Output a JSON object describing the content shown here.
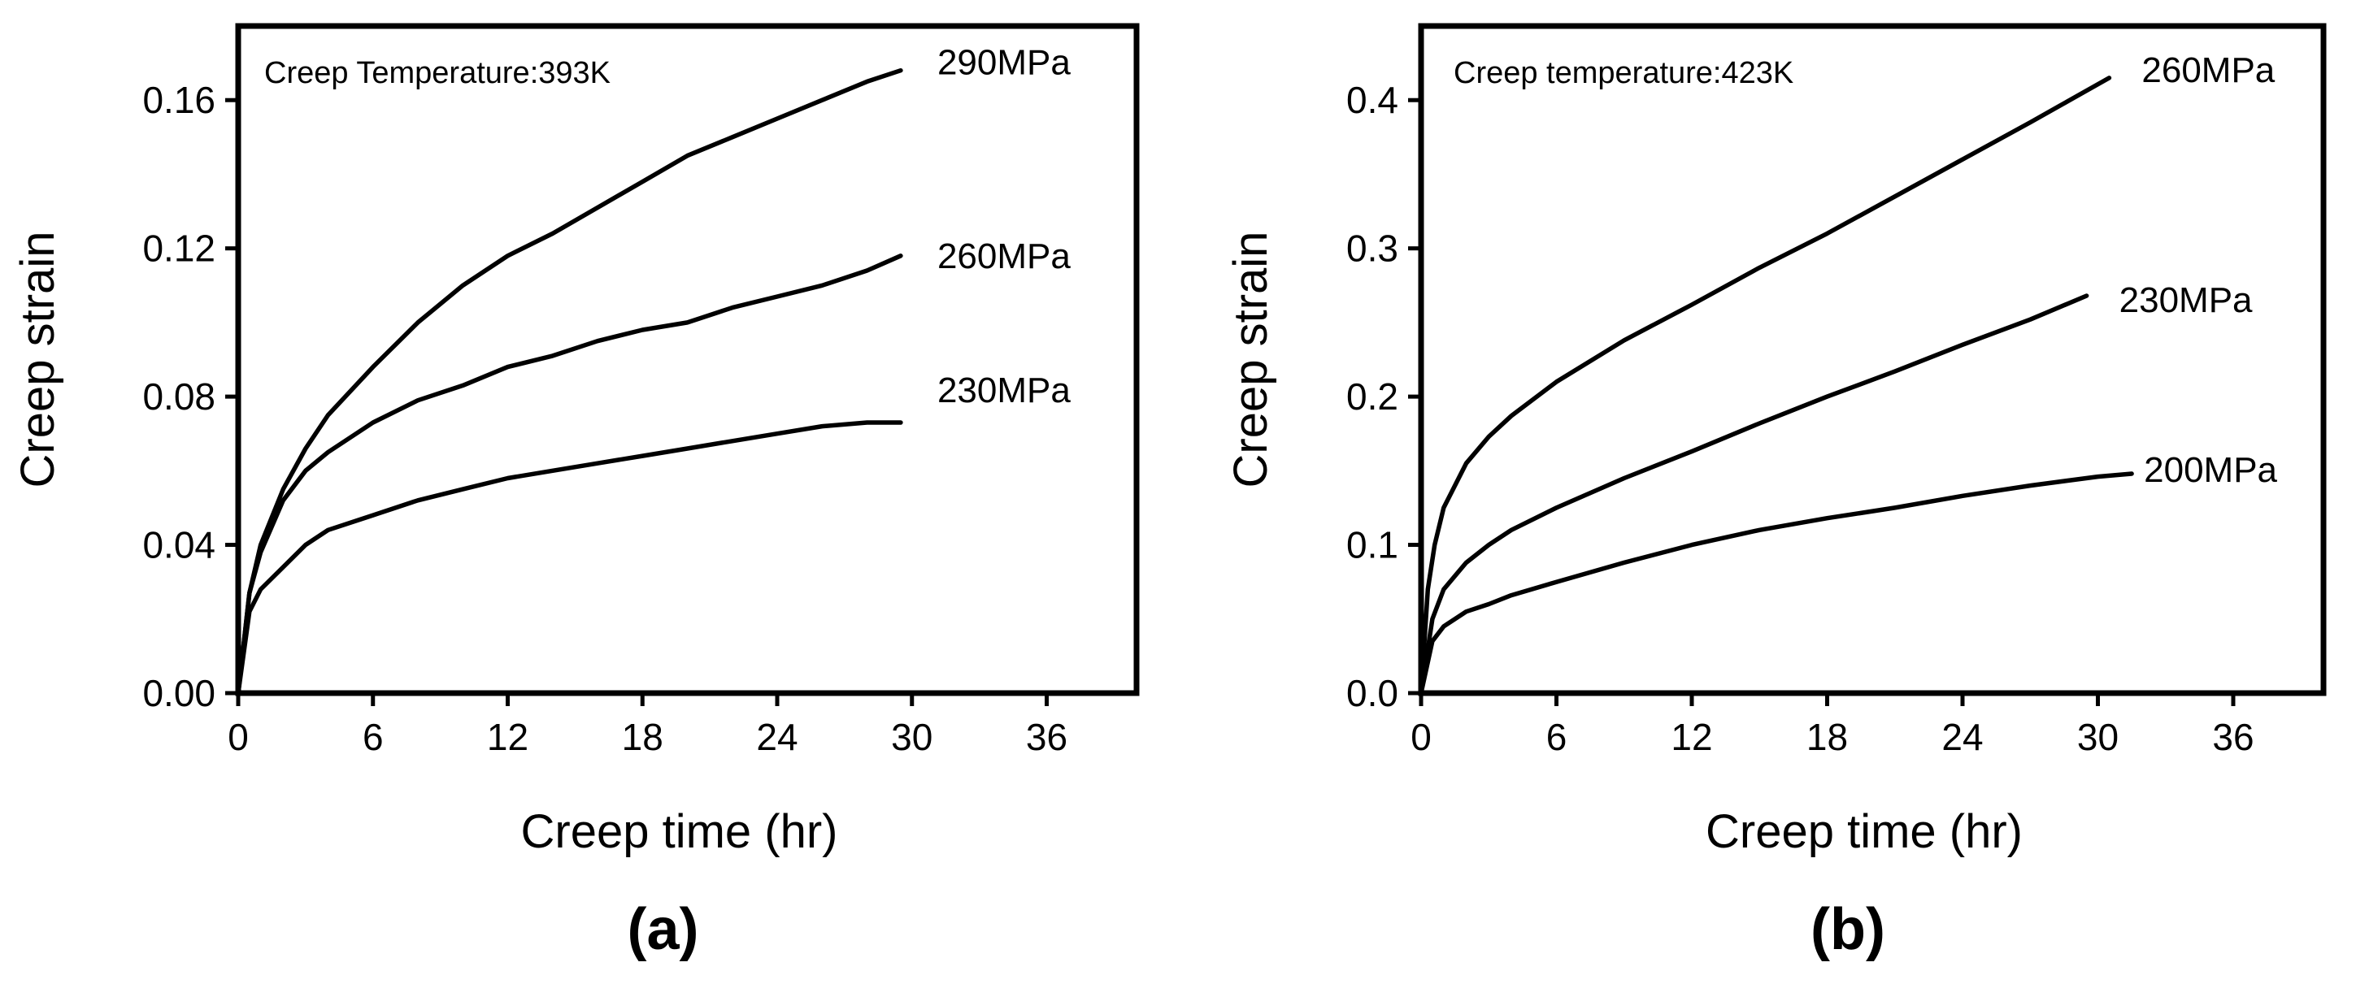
{
  "chart_data": [
    {
      "type": "line",
      "panel_label": "(a)",
      "annotation": "Creep Temperature:393K",
      "xlabel": "Creep time (hr)",
      "ylabel": "Creep strain",
      "xlim": [
        0,
        40
      ],
      "ylim": [
        0,
        0.18
      ],
      "xticks": [
        0,
        6,
        12,
        18,
        24,
        30,
        36
      ],
      "xtick_labels": [
        "0",
        "6",
        "12",
        "18",
        "24",
        "30",
        "36"
      ],
      "yticks": [
        0,
        0.04,
        0.08,
        0.12,
        0.16
      ],
      "ytick_labels": [
        "0.00",
        "0.04",
        "0.08",
        "0.12",
        "0.16"
      ],
      "grid": false,
      "series": [
        {
          "name": "290MPa",
          "x": [
            0,
            0.5,
            1,
            2,
            3,
            4,
            6,
            8,
            10,
            12,
            14,
            16,
            18,
            20,
            22,
            24,
            26,
            28,
            29.5
          ],
          "y": [
            0,
            0.027,
            0.04,
            0.055,
            0.066,
            0.075,
            0.088,
            0.1,
            0.11,
            0.118,
            0.124,
            0.131,
            0.138,
            0.145,
            0.15,
            0.155,
            0.16,
            0.165,
            0.168
          ]
        },
        {
          "name": "260MPa",
          "x": [
            0,
            0.5,
            1,
            2,
            3,
            4,
            6,
            8,
            10,
            12,
            14,
            16,
            18,
            20,
            22,
            24,
            26,
            28,
            29.5
          ],
          "y": [
            0,
            0.027,
            0.038,
            0.052,
            0.06,
            0.065,
            0.073,
            0.079,
            0.083,
            0.088,
            0.091,
            0.095,
            0.098,
            0.1,
            0.104,
            0.107,
            0.11,
            0.114,
            0.118
          ]
        },
        {
          "name": "230MPa",
          "x": [
            0,
            0.5,
            1,
            2,
            3,
            4,
            6,
            8,
            10,
            12,
            14,
            16,
            18,
            20,
            22,
            24,
            26,
            28,
            29.5
          ],
          "y": [
            0,
            0.022,
            0.028,
            0.034,
            0.04,
            0.044,
            0.048,
            0.052,
            0.055,
            0.058,
            0.06,
            0.062,
            0.064,
            0.066,
            0.068,
            0.07,
            0.072,
            0.073,
            0.073
          ]
        }
      ]
    },
    {
      "type": "line",
      "panel_label": "(b)",
      "annotation": "Creep temperature:423K",
      "xlabel": "Creep time (hr)",
      "ylabel": "Creep strain",
      "xlim": [
        0,
        40
      ],
      "ylim": [
        0,
        0.45
      ],
      "xticks": [
        0,
        6,
        12,
        18,
        24,
        30,
        36
      ],
      "xtick_labels": [
        "0",
        "6",
        "12",
        "18",
        "24",
        "30",
        "36"
      ],
      "yticks": [
        0,
        0.1,
        0.2,
        0.3,
        0.4
      ],
      "ytick_labels": [
        "0.0",
        "0.1",
        "0.2",
        "0.3",
        "0.4"
      ],
      "grid": false,
      "series": [
        {
          "name": "260MPa",
          "x": [
            0,
            0.3,
            0.6,
            1,
            2,
            3,
            4,
            6,
            9,
            12,
            15,
            18,
            21,
            24,
            27,
            30.5
          ],
          "y": [
            0,
            0.07,
            0.1,
            0.125,
            0.155,
            0.173,
            0.187,
            0.21,
            0.238,
            0.262,
            0.287,
            0.31,
            0.335,
            0.36,
            0.385,
            0.415
          ]
        },
        {
          "name": "230MPa",
          "x": [
            0,
            0.5,
            1,
            2,
            3,
            4,
            6,
            9,
            12,
            15,
            18,
            21,
            24,
            27,
            29.5
          ],
          "y": [
            0,
            0.05,
            0.07,
            0.088,
            0.1,
            0.11,
            0.125,
            0.145,
            0.163,
            0.182,
            0.2,
            0.217,
            0.235,
            0.252,
            0.268
          ]
        },
        {
          "name": "200MPa",
          "x": [
            0,
            0.5,
            1,
            2,
            3,
            4,
            6,
            9,
            12,
            15,
            18,
            21,
            24,
            27,
            30,
            31.5
          ],
          "y": [
            0,
            0.035,
            0.045,
            0.055,
            0.06,
            0.066,
            0.075,
            0.088,
            0.1,
            0.11,
            0.118,
            0.125,
            0.133,
            0.14,
            0.146,
            0.148
          ]
        }
      ]
    }
  ]
}
